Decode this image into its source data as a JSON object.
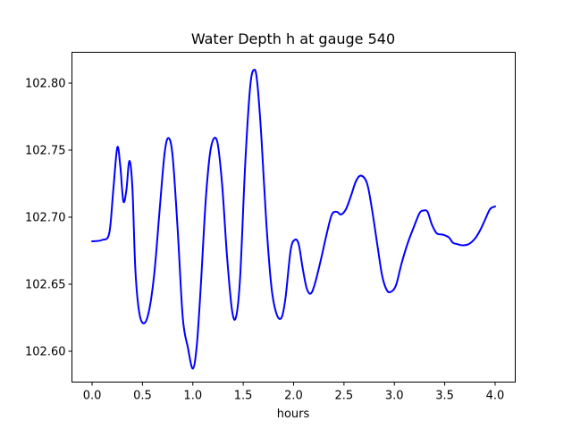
{
  "chart_data": {
    "type": "line",
    "title": "Water Depth h at gauge 540",
    "xlabel": "hours",
    "ylabel": "",
    "xlim": [
      -0.2,
      4.2
    ],
    "ylim": [
      102.577,
      102.823
    ],
    "x_ticks": [
      0.0,
      0.5,
      1.0,
      1.5,
      2.0,
      2.5,
      3.0,
      3.5,
      4.0
    ],
    "x_tick_labels": [
      "0.0",
      "0.5",
      "1.0",
      "1.5",
      "2.0",
      "2.5",
      "3.0",
      "3.5",
      "4.0"
    ],
    "y_ticks": [
      102.6,
      102.65,
      102.7,
      102.75,
      102.8
    ],
    "y_tick_labels": [
      "102.60",
      "102.65",
      "102.70",
      "102.75",
      "102.80"
    ],
    "grid": false,
    "series": [
      {
        "color": "#0000ff",
        "x": [
          0.0,
          0.1,
          0.17,
          0.21,
          0.25,
          0.28,
          0.31,
          0.34,
          0.37,
          0.4,
          0.43,
          0.47,
          0.52,
          0.57,
          0.62,
          0.67,
          0.72,
          0.76,
          0.8,
          0.85,
          0.9,
          0.95,
          1.0,
          1.04,
          1.08,
          1.13,
          1.18,
          1.24,
          1.29,
          1.34,
          1.39,
          1.43,
          1.47,
          1.52,
          1.57,
          1.61,
          1.64,
          1.68,
          1.73,
          1.78,
          1.83,
          1.88,
          1.92,
          1.97,
          2.01,
          2.05,
          2.09,
          2.13,
          2.17,
          2.21,
          2.27,
          2.33,
          2.38,
          2.43,
          2.47,
          2.52,
          2.57,
          2.62,
          2.67,
          2.73,
          2.78,
          2.83,
          2.88,
          2.93,
          2.98,
          3.02,
          3.07,
          3.13,
          3.19,
          3.25,
          3.29,
          3.33,
          3.37,
          3.42,
          3.48,
          3.54,
          3.58,
          3.62,
          3.68,
          3.74,
          3.8,
          3.85,
          3.9,
          3.95,
          4.0
        ],
        "y": [
          102.682,
          102.683,
          102.688,
          102.72,
          102.752,
          102.738,
          102.712,
          102.72,
          102.742,
          102.722,
          102.66,
          102.628,
          102.621,
          102.632,
          102.66,
          102.705,
          102.748,
          102.759,
          102.745,
          102.69,
          102.625,
          102.603,
          102.587,
          102.605,
          102.65,
          102.715,
          102.752,
          102.757,
          102.725,
          102.67,
          102.63,
          102.626,
          102.656,
          102.74,
          102.798,
          102.81,
          102.8,
          102.76,
          102.695,
          102.648,
          102.628,
          102.625,
          102.64,
          102.675,
          102.683,
          102.68,
          102.662,
          102.647,
          102.643,
          102.65,
          102.668,
          102.688,
          102.702,
          102.704,
          102.702,
          102.706,
          102.716,
          102.727,
          102.731,
          102.725,
          102.705,
          102.68,
          102.656,
          102.645,
          102.645,
          102.65,
          102.665,
          102.68,
          102.692,
          102.703,
          102.705,
          102.704,
          102.695,
          102.688,
          102.687,
          102.685,
          102.681,
          102.68,
          102.679,
          102.68,
          102.684,
          102.69,
          102.698,
          102.706,
          102.708
        ]
      }
    ]
  }
}
